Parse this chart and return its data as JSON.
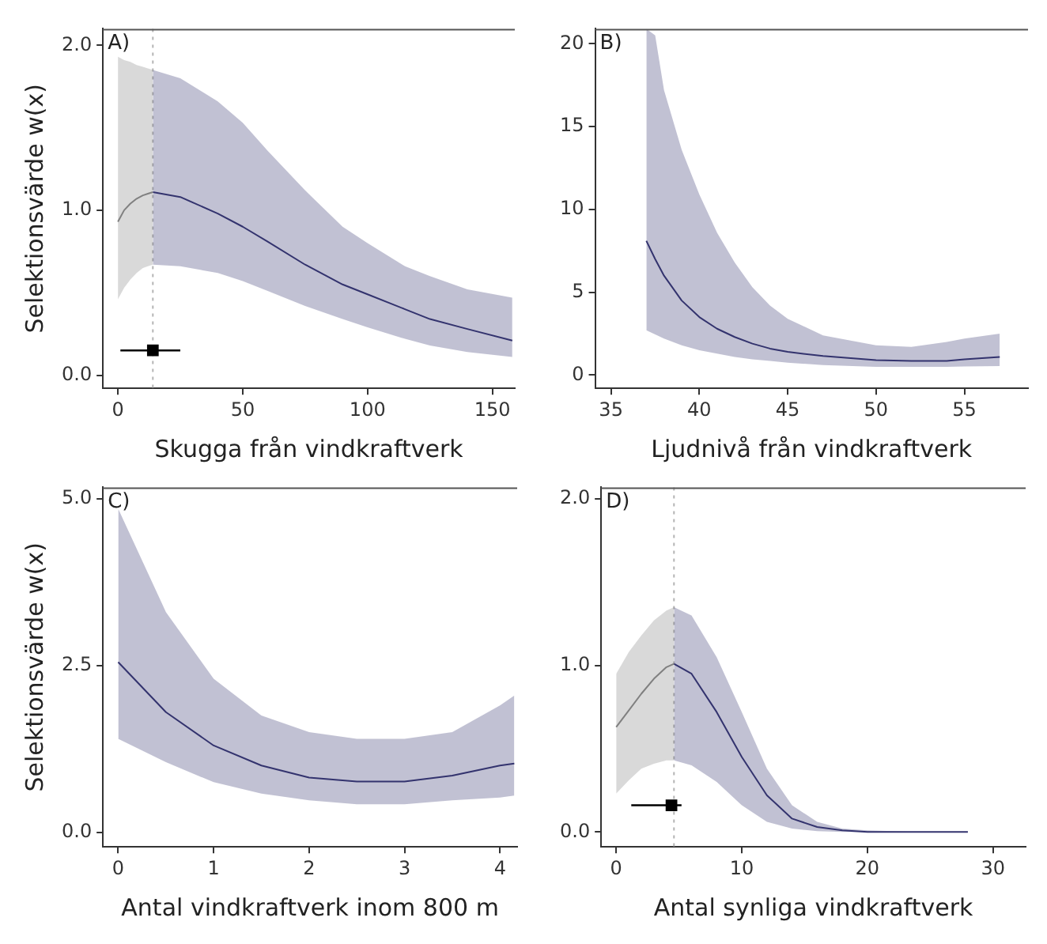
{
  "chart_data": [
    {
      "type": "line",
      "annotations": [
        "A)"
      ],
      "xlabel": "Skugga från vindkraftverk",
      "ylabel": "Selektionsvärde w(x)",
      "xlim": [
        -6,
        159
      ],
      "xticks": [
        0,
        50,
        100,
        150
      ],
      "ylim": [
        -0.08,
        2.1
      ],
      "yticks": [
        {
          "value": 0,
          "label": "0.0"
        },
        {
          "value": 1,
          "label": "1.0"
        },
        {
          "value": 2,
          "label": "2.0"
        }
      ],
      "grid": false,
      "legend": false,
      "ref_lines": [
        {
          "axis": "x",
          "value": 14,
          "color": "#b4b4b4",
          "line_style": "dotted"
        }
      ],
      "series": [
        {
          "color": "#808080",
          "x": [
            0,
            2.5,
            5,
            7.5,
            10,
            12,
            14
          ],
          "values": [
            0.93,
            1.0,
            1.04,
            1.07,
            1.09,
            1.1,
            1.11
          ],
          "lower": [
            0.46,
            0.53,
            0.58,
            0.62,
            0.65,
            0.66,
            0.67
          ],
          "upper": [
            1.93,
            1.91,
            1.9,
            1.88,
            1.87,
            1.86,
            1.85
          ]
        },
        {
          "color": "#33336e",
          "x": [
            14,
            25,
            40,
            50,
            60,
            75,
            90,
            100,
            115,
            125,
            140,
            158
          ],
          "values": [
            1.11,
            1.08,
            0.98,
            0.9,
            0.81,
            0.67,
            0.55,
            0.49,
            0.4,
            0.34,
            0.28,
            0.21
          ],
          "lower": [
            0.67,
            0.66,
            0.62,
            0.57,
            0.51,
            0.42,
            0.34,
            0.29,
            0.22,
            0.18,
            0.14,
            0.11
          ],
          "upper": [
            1.85,
            1.8,
            1.66,
            1.53,
            1.36,
            1.12,
            0.9,
            0.8,
            0.66,
            0.6,
            0.52,
            0.47
          ]
        },
        {
          "type": "scatter",
          "marker": "square",
          "color": "#000000",
          "x": [
            14
          ],
          "values": [
            0.15
          ],
          "xerrors": [
            [
              1,
              25
            ]
          ]
        }
      ]
    },
    {
      "type": "line",
      "annotations": [
        "B)"
      ],
      "xlabel": "Ljudnivå från vindkraftverk",
      "xlim": [
        34.1,
        58.6
      ],
      "xticks": [
        35,
        40,
        45,
        50,
        55
      ],
      "ylim": [
        -0.8,
        20.9
      ],
      "yticks": [
        0,
        5,
        10,
        15,
        20
      ],
      "grid": false,
      "legend": false,
      "series": [
        {
          "color": "#33336e",
          "x": [
            37,
            37.5,
            38,
            39,
            40,
            41,
            42,
            43,
            44,
            45,
            47,
            50,
            52,
            54,
            55,
            57
          ],
          "values": [
            8.1,
            7.0,
            6.0,
            4.5,
            3.5,
            2.8,
            2.3,
            1.9,
            1.6,
            1.4,
            1.15,
            0.9,
            0.85,
            0.85,
            0.95,
            1.1
          ],
          "lower": [
            2.7,
            2.45,
            2.2,
            1.8,
            1.5,
            1.3,
            1.1,
            0.95,
            0.85,
            0.75,
            0.6,
            0.5,
            0.5,
            0.5,
            0.52,
            0.55
          ],
          "upper": [
            20.9,
            20.5,
            17.2,
            13.6,
            10.9,
            8.6,
            6.8,
            5.3,
            4.2,
            3.4,
            2.4,
            1.8,
            1.7,
            2.0,
            2.2,
            2.5
          ]
        }
      ]
    },
    {
      "type": "line",
      "annotations": [
        "C)"
      ],
      "xlabel": "Antal vindkraftverk inom 800 m",
      "ylabel": "Selektionsvärde w(x)",
      "xlim": [
        -0.16,
        4.18
      ],
      "xticks": [
        0,
        1,
        2,
        3,
        4
      ],
      "ylim": [
        -0.22,
        5.17
      ],
      "yticks": [
        {
          "value": 0,
          "label": "0.0"
        },
        2.5,
        {
          "value": 5,
          "label": "5.0"
        }
      ],
      "grid": false,
      "legend": false,
      "series": [
        {
          "color": "#33336e",
          "x": [
            0,
            0.5,
            1,
            1.5,
            2,
            2.5,
            3,
            3.5,
            4,
            4.15
          ],
          "values": [
            2.55,
            1.8,
            1.3,
            1.0,
            0.82,
            0.76,
            0.76,
            0.85,
            1.0,
            1.03
          ],
          "lower": [
            1.4,
            1.05,
            0.75,
            0.58,
            0.48,
            0.42,
            0.42,
            0.48,
            0.52,
            0.55
          ],
          "upper": [
            4.85,
            3.3,
            2.3,
            1.75,
            1.5,
            1.4,
            1.4,
            1.5,
            1.9,
            2.05
          ]
        }
      ]
    },
    {
      "type": "line",
      "annotations": [
        "D)"
      ],
      "xlabel": "Antal synliga vindkraftverk",
      "xlim": [
        -1.2,
        32.6
      ],
      "xticks": [
        0,
        10,
        20,
        30
      ],
      "ylim": [
        -0.09,
        2.07
      ],
      "yticks": [
        {
          "value": 0,
          "label": "0.0"
        },
        {
          "value": 1,
          "label": "1.0"
        },
        {
          "value": 2,
          "label": "2.0"
        }
      ],
      "grid": false,
      "legend": false,
      "ref_lines": [
        {
          "axis": "x",
          "value": 4.6,
          "color": "#b4b4b4",
          "line_style": "dotted"
        }
      ],
      "series": [
        {
          "color": "#808080",
          "x": [
            0,
            1,
            2,
            3,
            4,
            4.6
          ],
          "values": [
            0.63,
            0.73,
            0.83,
            0.92,
            0.99,
            1.01
          ],
          "lower": [
            0.23,
            0.31,
            0.38,
            0.41,
            0.43,
            0.43
          ],
          "upper": [
            0.95,
            1.08,
            1.18,
            1.27,
            1.33,
            1.35
          ]
        },
        {
          "color": "#33336e",
          "x": [
            4.6,
            6,
            8,
            10,
            12,
            14,
            16,
            18,
            20,
            24,
            28
          ],
          "values": [
            1.01,
            0.95,
            0.72,
            0.45,
            0.22,
            0.08,
            0.03,
            0.01,
            0,
            0,
            0
          ],
          "lower": [
            0.43,
            0.4,
            0.3,
            0.16,
            0.06,
            0.02,
            0.005,
            0,
            0,
            0,
            0
          ],
          "upper": [
            1.35,
            1.3,
            1.05,
            0.72,
            0.38,
            0.16,
            0.06,
            0.02,
            0.01,
            0,
            0
          ]
        },
        {
          "type": "scatter",
          "marker": "square",
          "color": "#000000",
          "x": [
            4.4
          ],
          "values": [
            0.16
          ],
          "xerrors": [
            [
              1.2,
              5.2
            ]
          ]
        }
      ]
    }
  ]
}
